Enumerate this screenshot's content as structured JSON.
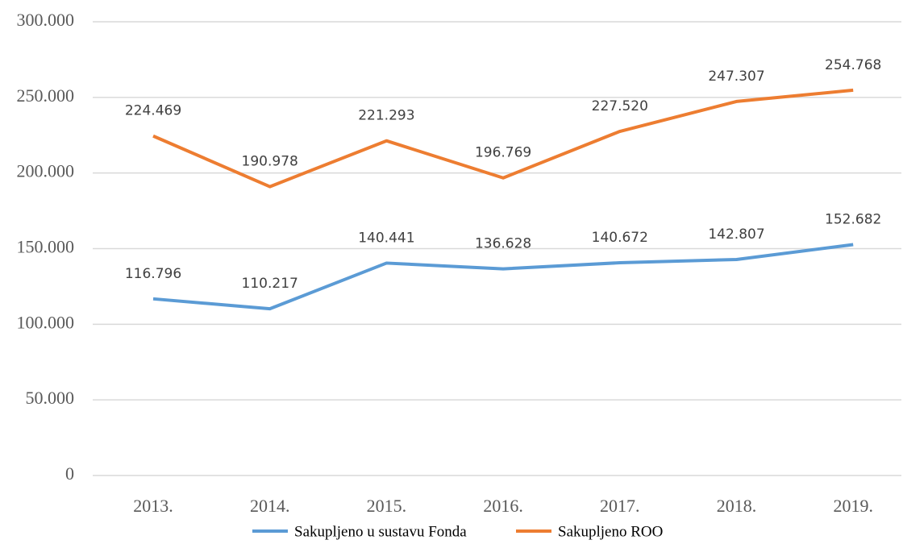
{
  "chart_data": {
    "type": "line",
    "categories": [
      "2013.",
      "2014.",
      "2015.",
      "2016.",
      "2017.",
      "2018.",
      "2019."
    ],
    "series": [
      {
        "name": "Sakupljeno u sustavu Fonda",
        "color": "#5b9bd5",
        "values": [
          116796,
          110217,
          140441,
          136628,
          140672,
          142807,
          152682
        ],
        "value_labels": [
          "116.796",
          "110.217",
          "140.441",
          "136.628",
          "140.672",
          "142.807",
          "152.682"
        ]
      },
      {
        "name": "Sakupljeno ROO",
        "color": "#ed7d31",
        "values": [
          224469,
          190978,
          221293,
          196769,
          227520,
          247307,
          254768
        ],
        "value_labels": [
          "224.469",
          "190.978",
          "221.293",
          "196.769",
          "227.520",
          "247.307",
          "254.768"
        ]
      }
    ],
    "ylim": [
      0,
      300000
    ],
    "yticks": [
      {
        "value": 0,
        "label": "0"
      },
      {
        "value": 50000,
        "label": "50.000"
      },
      {
        "value": 100000,
        "label": "100.000"
      },
      {
        "value": 150000,
        "label": "150.000"
      },
      {
        "value": 200000,
        "label": "200.000"
      },
      {
        "value": 250000,
        "label": "250.000"
      },
      {
        "value": 300000,
        "label": "300.000"
      }
    ],
    "grid": true,
    "legend": "bottom"
  }
}
